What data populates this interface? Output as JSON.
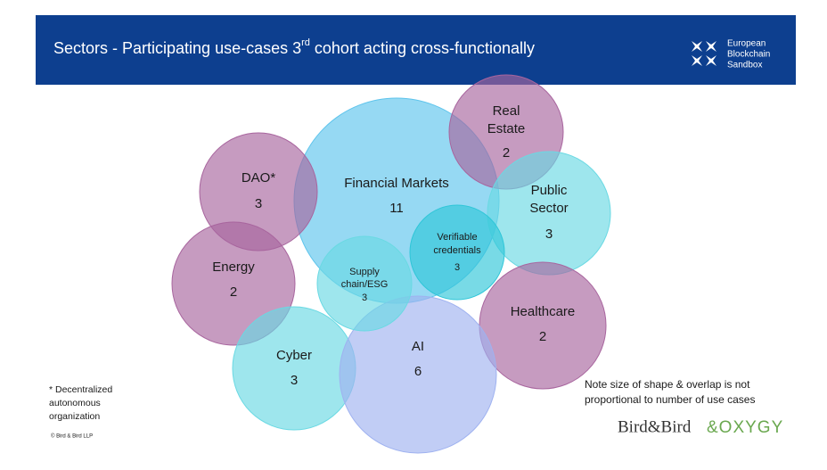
{
  "header": {
    "title": [
      "Sectors - Participating use-cases 3",
      "rd",
      " cohort acting cross-functionally"
    ],
    "logo": [
      "European",
      "Blockchain",
      "Sandbox"
    ]
  },
  "nodes": [
    {
      "label": [
        "Financial Markets"
      ],
      "count": 11
    },
    {
      "label": [
        "DAO*"
      ],
      "count": 3
    },
    {
      "label": [
        "Real",
        "Estate"
      ],
      "count": 2
    },
    {
      "label": [
        "Public",
        "Sector"
      ],
      "count": 3
    },
    {
      "label": [
        "Energy"
      ],
      "count": 2
    },
    {
      "label": [
        "Healthcare"
      ],
      "count": 2
    },
    {
      "label": [
        "Cyber"
      ],
      "count": 3
    },
    {
      "label": [
        "AI"
      ],
      "count": 6
    },
    {
      "label": [
        "Verifiable",
        "credentials"
      ],
      "count": 3
    },
    {
      "label": [
        "Supply",
        "chain/ESG"
      ],
      "count": 3
    }
  ],
  "footnote": [
    "* Decentralized",
    "autonomous",
    "organization"
  ],
  "copyright": "© Bird & Bird LLP",
  "note": [
    "Note size of shape & overlap is not",
    "proportional to number of use cases"
  ],
  "logos": [
    "Bird&Bird",
    "&OXYGY"
  ]
}
